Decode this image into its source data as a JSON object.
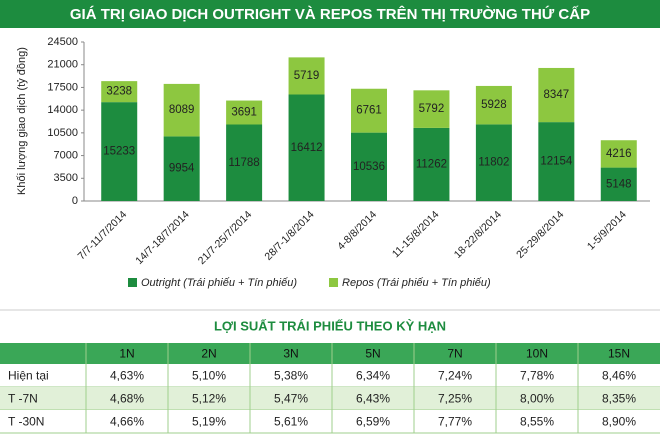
{
  "chart_data": {
    "type": "stacked_bar",
    "title": "GIÁ TRỊ GIAO DỊCH OUTRIGHT VÀ REPOS TRÊN THỊ TRƯỜNG THỨ CẤP",
    "y_label": "Khối lượng giao dịch (tỷ đồng)",
    "categories": [
      "7/7-11/7/2014",
      "14/7-18/7/2014",
      "21/7-25/7/2014",
      "28/7-1/8/2014",
      "4-8/8/2014",
      "11-15/8/2014",
      "18-22/8/2014",
      "25-29/8/2014",
      "1-5/9/2014"
    ],
    "series": [
      {
        "name": "Outright (Trái phiếu + Tín phiếu)",
        "color": "#1d8c3f",
        "values": [
          15233,
          9954,
          11788,
          16412,
          10536,
          11262,
          11802,
          12154,
          5148
        ]
      },
      {
        "name": "Repos (Trái phiếu + Tín phiếu)",
        "color": "#8dc740",
        "values": [
          3238,
          8089,
          3691,
          5719,
          6761,
          5792,
          5928,
          8347,
          4216
        ]
      }
    ],
    "ylim": [
      0,
      24500
    ],
    "yticks": [
      0,
      3500,
      7000,
      10500,
      14000,
      17500,
      21000,
      24500
    ],
    "grid": false,
    "legend": "bottom"
  },
  "table": {
    "title": "LỢI SUẤT TRÁI PHIẾU THEO KỲ HẠN",
    "header": [
      "1N",
      "2N",
      "3N",
      "5N",
      "7N",
      "10N",
      "15N"
    ],
    "rows": [
      {
        "label": "Hiện tại",
        "cells": [
          "4,63%",
          "5,10%",
          "5,38%",
          "6,34%",
          "7,24%",
          "7,78%",
          "8,46%"
        ]
      },
      {
        "label": "T -7N",
        "cells": [
          "4,68%",
          "5,12%",
          "5,47%",
          "6,43%",
          "7,25%",
          "8,00%",
          "8,35%"
        ]
      },
      {
        "label": "T -30N",
        "cells": [
          "4,66%",
          "5,19%",
          "5,61%",
          "6,59%",
          "7,77%",
          "8,55%",
          "8,90%"
        ]
      }
    ]
  }
}
